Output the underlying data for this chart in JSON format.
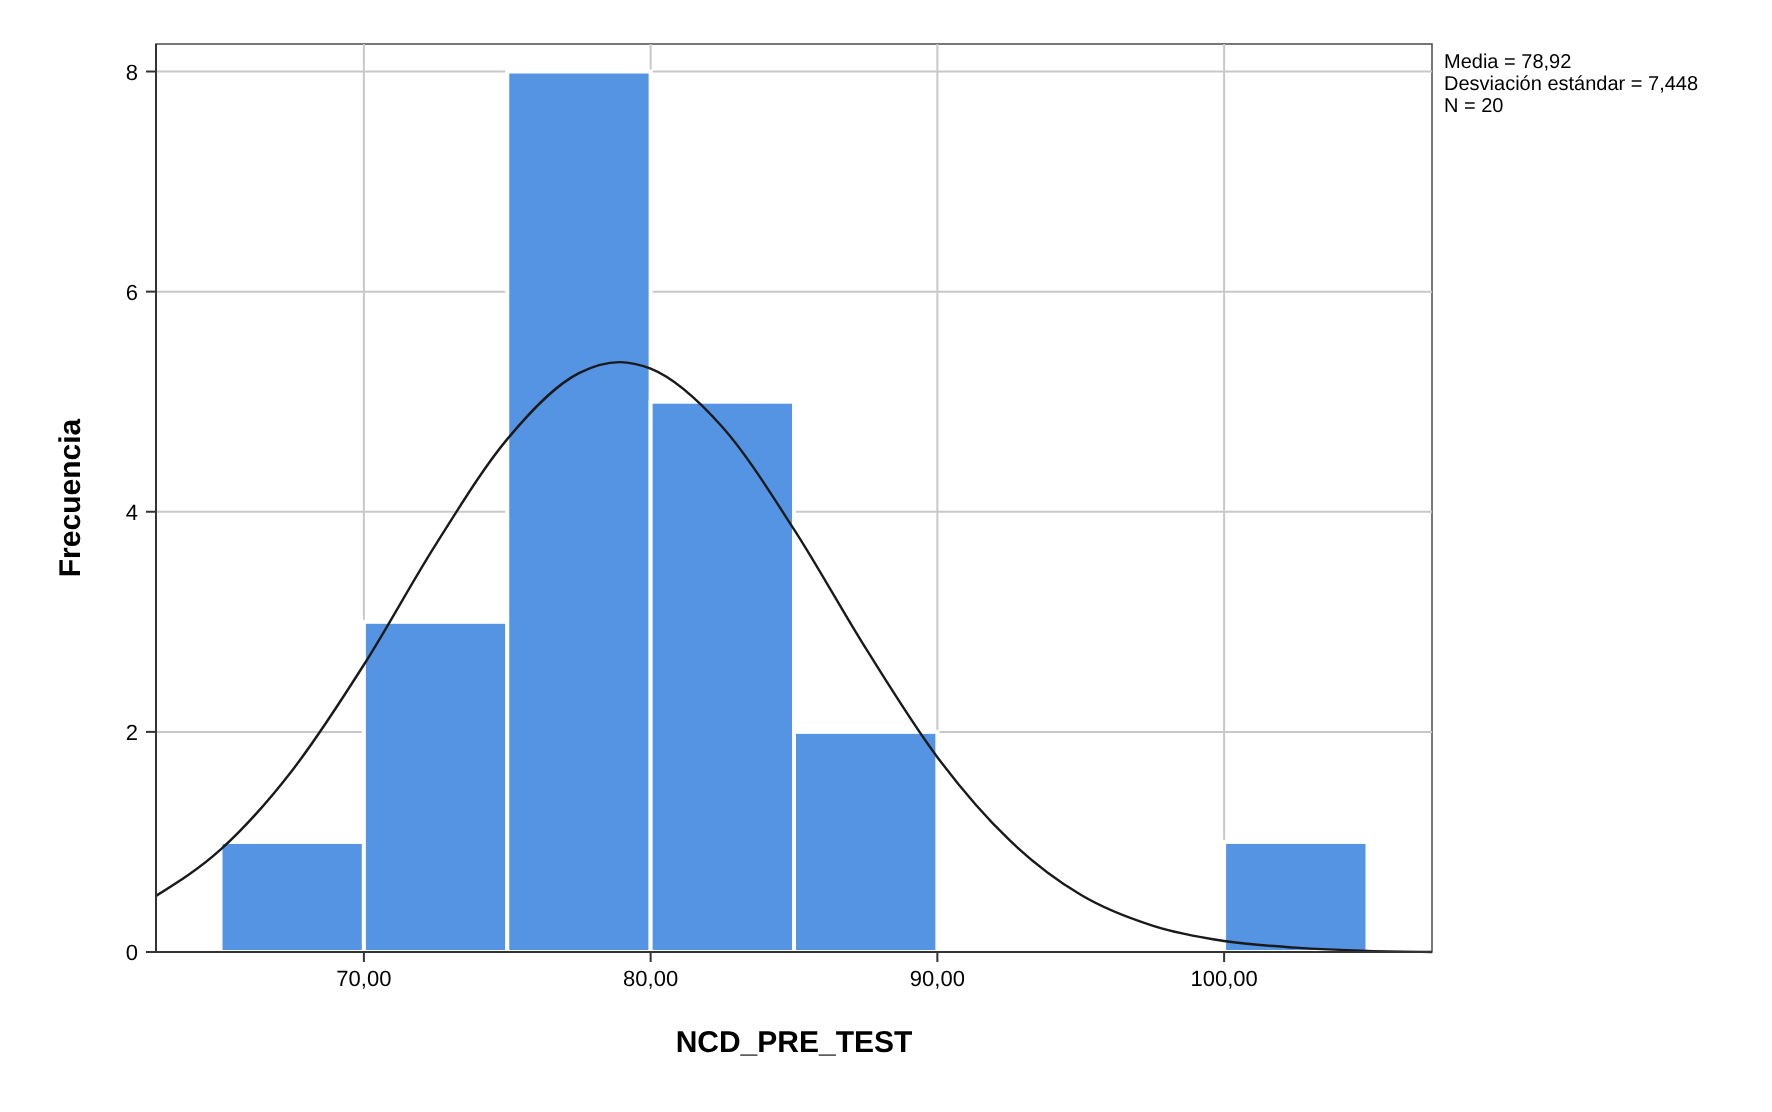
{
  "chart_data": {
    "type": "histogram",
    "xlabel": "NCD_PRE_TEST",
    "ylabel": "Frecuencia",
    "bins": [
      65,
      70,
      75,
      80,
      85,
      90,
      95,
      100,
      105
    ],
    "values": [
      1,
      3,
      8,
      5,
      2,
      0,
      0,
      1
    ],
    "color": "#5594e3",
    "series": [
      {
        "type": "line",
        "color": "#1a1a1a",
        "x": [
          62.75,
          65,
          67.5,
          70,
          72.5,
          75,
          77.5,
          78.92,
          80,
          82.5,
          85,
          87.5,
          90,
          92.5,
          95,
          97.5,
          100,
          102.5,
          105,
          107.25
        ],
        "values": [
          0.51,
          0.93,
          1.65,
          2.61,
          3.7,
          4.66,
          5.26,
          5.36,
          5.3,
          4.77,
          3.84,
          2.76,
          1.77,
          1.02,
          0.52,
          0.24,
          0.1,
          0.04,
          0.01,
          0
        ]
      }
    ],
    "xlim": [
      62.75,
      107.25
    ],
    "ylim": [
      0,
      8.25
    ],
    "xticks": [
      {
        "value": 70,
        "label": "70,00"
      },
      {
        "value": 80,
        "label": "80,00"
      },
      {
        "value": 90,
        "label": "90,00"
      },
      {
        "value": 100,
        "label": "100,00"
      }
    ],
    "yticks": [
      0,
      2,
      4,
      6,
      8
    ],
    "grid": true,
    "marker": "none",
    "line_style": "solid",
    "annotations": [
      "Media = 78,92",
      "Desviación estándar = 7,448",
      "N = 20"
    ]
  }
}
